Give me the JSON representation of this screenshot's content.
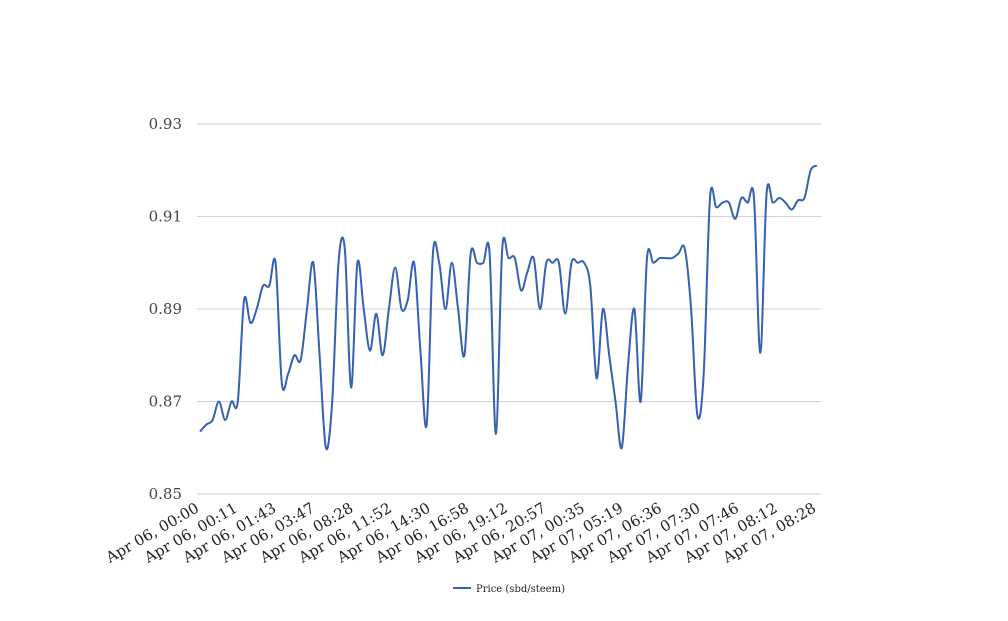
{
  "chart_data": {
    "type": "line",
    "title": "",
    "xlabel": "",
    "ylabel": "",
    "ylim": [
      0.85,
      0.93
    ],
    "yticks": [
      "0.85",
      "0.87",
      "0.89",
      "0.91",
      "0.93"
    ],
    "grid": true,
    "legend_position": "bottom-center",
    "x_tick_labels": [
      "Apr 06, 00:00",
      "Apr 06, 00:11",
      "Apr 06, 01:43",
      "Apr 06, 03:47",
      "Apr 06, 08:28",
      "Apr 06, 11:52",
      "Apr 06, 14:30",
      "Apr 06, 16:58",
      "Apr 06, 19:12",
      "Apr 06, 20:57",
      "Apr 07, 00:35",
      "Apr 07, 05:19",
      "Apr 07, 06:36",
      "Apr 07, 07:30",
      "Apr 07, 07:46",
      "Apr 07, 08:12",
      "Apr 07, 08:28"
    ],
    "series": [
      {
        "name": "Price (sbd/steem)",
        "color": "#3461b0",
        "values": [
          0.8635,
          0.865,
          0.866,
          0.87,
          0.866,
          0.87,
          0.87,
          0.892,
          0.887,
          0.89,
          0.895,
          0.895,
          0.9,
          0.874,
          0.876,
          0.88,
          0.879,
          0.89,
          0.9,
          0.88,
          0.86,
          0.87,
          0.9,
          0.903,
          0.873,
          0.9,
          0.89,
          0.881,
          0.889,
          0.88,
          0.89,
          0.899,
          0.89,
          0.892,
          0.9,
          0.881,
          0.865,
          0.902,
          0.9,
          0.89,
          0.9,
          0.89,
          0.88,
          0.902,
          0.9,
          0.9,
          0.902,
          0.863,
          0.903,
          0.901,
          0.901,
          0.894,
          0.898,
          0.901,
          0.89,
          0.9,
          0.9,
          0.9,
          0.889,
          0.9,
          0.9,
          0.9,
          0.895,
          0.875,
          0.89,
          0.88,
          0.87,
          0.86,
          0.878,
          0.89,
          0.87,
          0.901,
          0.9,
          0.901,
          0.901,
          0.901,
          0.902,
          0.903,
          0.89,
          0.867,
          0.876,
          0.914,
          0.912,
          0.913,
          0.913,
          0.9095,
          0.914,
          0.913,
          0.914,
          0.8805,
          0.915,
          0.913,
          0.914,
          0.913,
          0.9115,
          0.9135,
          0.914,
          0.92,
          0.921
        ]
      }
    ]
  }
}
